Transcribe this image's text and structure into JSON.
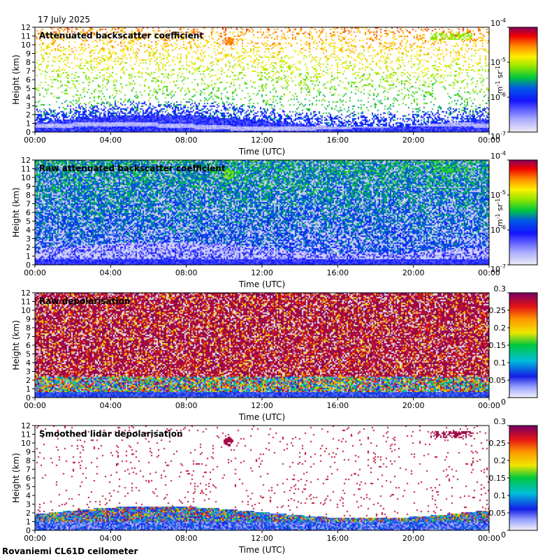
{
  "header": {
    "date": "17 July 2025"
  },
  "footer": {
    "site": "Rovaniemi CL61D ceilometer"
  },
  "colors": {
    "text": "#000000",
    "background": "#ffffff"
  },
  "chart_data": [
    {
      "type": "heatmap",
      "title": "Attenuated backscatter coefficient",
      "xlabel": "Time (UTC)",
      "ylabel": "Height (km)",
      "xlim": [
        0,
        24
      ],
      "ylim": [
        0,
        12
      ],
      "x_ticks": [
        "00:00",
        "04:00",
        "08:00",
        "12:00",
        "16:00",
        "20:00",
        "00:00"
      ],
      "y_ticks": [
        "0",
        "1",
        "2",
        "3",
        "4",
        "5",
        "6",
        "7",
        "8",
        "9",
        "10",
        "11",
        "12"
      ],
      "colorbar": {
        "scale": "log",
        "range": [
          1e-07,
          0.0001
        ],
        "ticks": [
          "10-7",
          "10-6",
          "10-5",
          "10-4"
        ],
        "label": "m-1 sr-1"
      },
      "features": [
        {
          "desc": "boundary layer aerosol",
          "height_km": [
            0,
            2.5
          ],
          "level": 0.25
        },
        {
          "desc": "cloud patch",
          "time_h": 10.2,
          "height_km": 10.5,
          "level": 0.7
        },
        {
          "desc": "cloud patch",
          "time_h": 21.5,
          "height_km": 11.2,
          "level": 0.55
        }
      ]
    },
    {
      "type": "heatmap",
      "title": "Raw attenuated backscatter coefficient",
      "xlabel": "Time (UTC)",
      "ylabel": "Height (km)",
      "xlim": [
        0,
        24
      ],
      "ylim": [
        0,
        12
      ],
      "x_ticks": [
        "00:00",
        "04:00",
        "08:00",
        "12:00",
        "16:00",
        "20:00",
        "00:00"
      ],
      "y_ticks": [
        "0",
        "1",
        "2",
        "3",
        "4",
        "5",
        "6",
        "7",
        "8",
        "9",
        "10",
        "11",
        "12"
      ],
      "colorbar": {
        "scale": "log",
        "range": [
          1e-07,
          0.0001
        ],
        "ticks": [
          "10-7",
          "10-6",
          "10-5",
          "10-4"
        ],
        "label": "m-1 sr-1"
      }
    },
    {
      "type": "heatmap",
      "title": "Raw depolarisation",
      "xlabel": "Time (UTC)",
      "ylabel": "Height (km)",
      "xlim": [
        0,
        24
      ],
      "ylim": [
        0,
        12
      ],
      "x_ticks": [
        "00:00",
        "04:00",
        "08:00",
        "12:00",
        "16:00",
        "20:00",
        "00:00"
      ],
      "y_ticks": [
        "0",
        "1",
        "2",
        "3",
        "4",
        "5",
        "6",
        "7",
        "8",
        "9",
        "10",
        "11",
        "12"
      ],
      "colorbar": {
        "scale": "linear",
        "range": [
          0,
          0.3
        ],
        "ticks": [
          "0",
          "0.05",
          "0.1",
          "0.15",
          "0.2",
          "0.25",
          "0.3"
        ],
        "label": ""
      }
    },
    {
      "type": "heatmap",
      "title": "Smoothed lidar depolarisation",
      "xlabel": "Time (UTC)",
      "ylabel": "Height (km)",
      "xlim": [
        0,
        24
      ],
      "ylim": [
        0,
        12
      ],
      "x_ticks": [
        "00:00",
        "04:00",
        "08:00",
        "12:00",
        "16:00",
        "20:00",
        "00:00"
      ],
      "y_ticks": [
        "0",
        "1",
        "2",
        "3",
        "4",
        "5",
        "6",
        "7",
        "8",
        "9",
        "10",
        "11",
        "12"
      ],
      "colorbar": {
        "scale": "linear",
        "range": [
          0,
          0.3
        ],
        "ticks": [
          "0",
          "0.05",
          "0.1",
          "0.15",
          "0.2",
          "0.25",
          "0.3"
        ],
        "label": ""
      }
    }
  ]
}
